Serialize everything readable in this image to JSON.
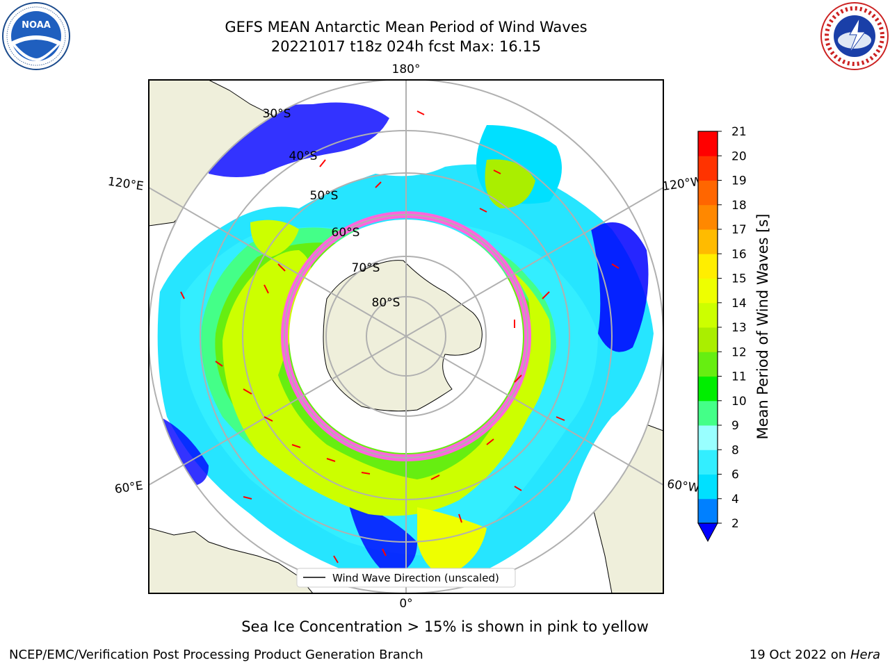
{
  "title": {
    "line1": "GEFS MEAN Antarctic Mean Period of Wind Waves",
    "line2": "20221017 t18z 024h fcst   Max: 16.15"
  },
  "logos": {
    "left": {
      "text": "NOAA",
      "ring_text": "NATIONAL OCEANIC AND ATMOSPHERIC ADMINISTRATION · U.S. DEPARTMENT OF COMMERCE"
    },
    "right": {
      "ring_text": "NATIONAL WEATHER SERVICE"
    }
  },
  "map": {
    "longitude_labels": {
      "top": "180°",
      "bottom": "0°",
      "left_upper": "120°E",
      "left_lower": "60°E",
      "right_upper": "120°W",
      "right_lower": "60°W"
    },
    "latitude_labels": [
      "30°S",
      "40°S",
      "50°S",
      "60°S",
      "70°S",
      "80°S"
    ],
    "legend": "Wind Wave Direction (unscaled)"
  },
  "colorbar": {
    "label": "Mean Period of Wind Waves [s]",
    "ticks": [
      "2",
      "4",
      "6",
      "8",
      "9",
      "10",
      "11",
      "12",
      "13",
      "14",
      "15",
      "16",
      "17",
      "18",
      "19",
      "20",
      "21"
    ],
    "colors": [
      "#0000ff",
      "#0080ff",
      "#00e0ff",
      "#33eeff",
      "#99ffff",
      "#44ff88",
      "#00ee00",
      "#66ee11",
      "#aaee00",
      "#ccff00",
      "#eeff00",
      "#ffee00",
      "#ffbb00",
      "#ff8800",
      "#ff6600",
      "#ff3300",
      "#ff0000"
    ]
  },
  "ice_note": "Sea Ice Concentration > 15% is shown in pink to yellow",
  "footer": {
    "left": "NCEP/EMC/Verification Post Processing Product Generation Branch",
    "right_date": "19 Oct 2022 on",
    "right_host": "Hera"
  }
}
